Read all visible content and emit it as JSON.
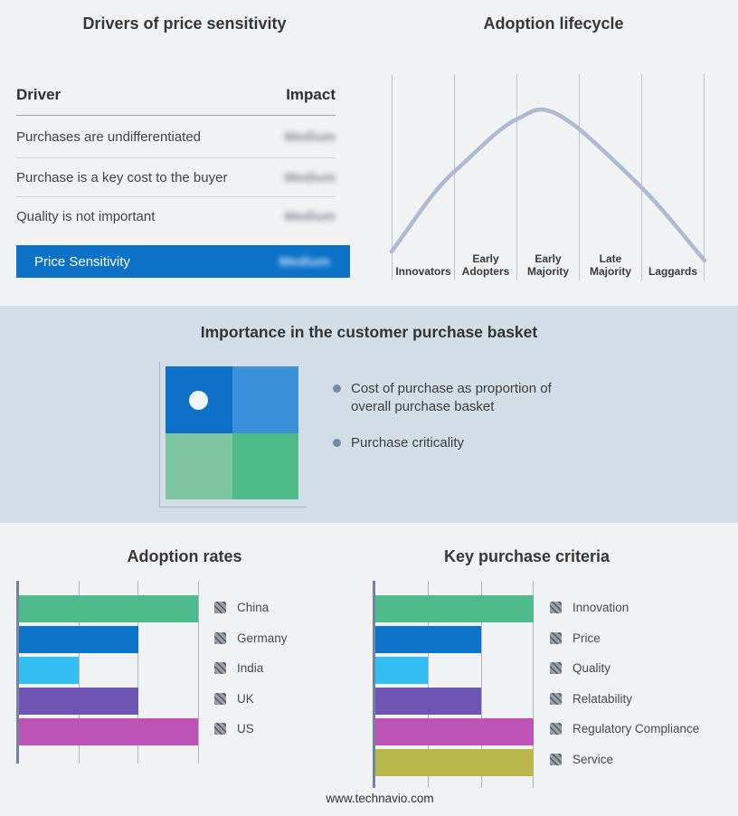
{
  "drivers_panel": {
    "title": "Drivers of price sensitivity",
    "table": {
      "header": {
        "driver": "Driver",
        "impact": "Impact"
      },
      "rows": [
        {
          "driver": "Purchases are undifferentiated",
          "impact": "Medium"
        },
        {
          "driver": "Purchase is a key cost to the buyer",
          "impact": "Medium"
        },
        {
          "driver": "Quality is not important",
          "impact": "Medium"
        }
      ],
      "highlight_row": {
        "driver": "Price Sensitivity",
        "impact": "Medium",
        "bg": "#0b72c8"
      }
    }
  },
  "basket_panel": {
    "title": "Importance in the customer purchase basket",
    "bullets": [
      "Cost of purchase as proportion of overall purchase basket",
      "Purchase criticality"
    ],
    "band_bg": "#d3dde8",
    "quadrant_colors": {
      "top_left": "#0e71c7",
      "top_right": "#3a90d9",
      "bottom_left": "#80c5a2",
      "bottom_right": "#4fbb89",
      "marker": "#eef6fc"
    }
  },
  "footer": {
    "watermark": "www.technavio.com"
  },
  "chart_data": [
    {
      "id": "adoption_rates",
      "type": "bar",
      "orientation": "horizontal",
      "title": "Adoption rates",
      "categories": [
        "China",
        "Germany",
        "India",
        "UK",
        "US"
      ],
      "values": [
        3,
        2,
        1,
        2,
        3
      ],
      "xlim": [
        0,
        3
      ],
      "gridline_step": 1,
      "grid": true,
      "legend_position": "right",
      "colors": [
        "#4fba8c",
        "#0b74c9",
        "#33bff2",
        "#6e54b4",
        "#bd53b5"
      ]
    },
    {
      "id": "key_purchase_criteria",
      "type": "bar",
      "orientation": "horizontal",
      "title": "Key purchase criteria",
      "categories": [
        "Innovation",
        "Price",
        "Quality",
        "Relatability",
        "Regulatory Compliance",
        "Service"
      ],
      "values": [
        3,
        2,
        1,
        2,
        3,
        3
      ],
      "xlim": [
        0,
        3
      ],
      "gridline_step": 1,
      "grid": true,
      "legend_position": "right",
      "colors": [
        "#4fba8c",
        "#0b74c9",
        "#33bff2",
        "#6e54b4",
        "#bd53b5",
        "#b9b74b"
      ]
    },
    {
      "id": "adoption_lifecycle",
      "type": "line",
      "title": "Adoption lifecycle",
      "categories": [
        "Innovators",
        "Early Adopters",
        "Early Majority",
        "Late Majority",
        "Laggards"
      ],
      "curve_points_norm": [
        [
          0.0,
          0.14
        ],
        [
          0.2,
          0.52
        ],
        [
          0.4,
          0.78
        ],
        [
          0.48,
          0.83
        ],
        [
          0.61,
          0.73
        ],
        [
          0.8,
          0.45
        ],
        [
          1.0,
          0.1
        ]
      ],
      "peak_at": "boundary of Early Adopters / Early Majority",
      "line_color": "#adbacf",
      "grid": true
    }
  ]
}
